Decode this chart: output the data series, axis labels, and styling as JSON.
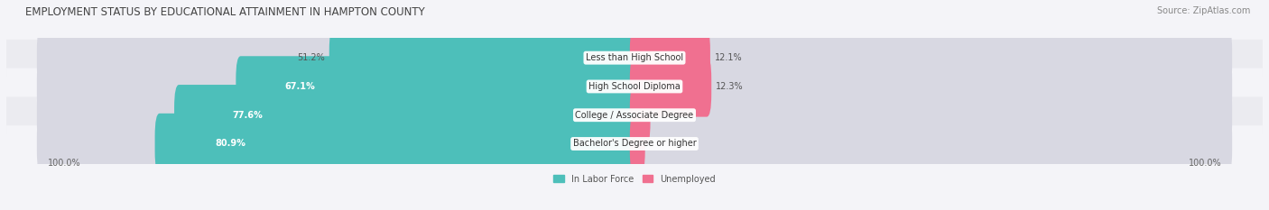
{
  "title": "EMPLOYMENT STATUS BY EDUCATIONAL ATTAINMENT IN HAMPTON COUNTY",
  "source": "Source: ZipAtlas.com",
  "categories": [
    "Less than High School",
    "High School Diploma",
    "College / Associate Degree",
    "Bachelor's Degree or higher"
  ],
  "labor_force": [
    51.2,
    67.1,
    77.6,
    80.9
  ],
  "unemployed": [
    12.1,
    12.3,
    1.9,
    1.0
  ],
  "labor_force_color": "#4dbfba",
  "unemployed_color": "#f07090",
  "row_bg_even": "#ebebf0",
  "row_bg_odd": "#f4f4f8",
  "bar_bg_color": "#d8d8e2",
  "axis_label_left": "100.0%",
  "axis_label_right": "100.0%",
  "max_val": 100.0,
  "title_fontsize": 8.5,
  "source_fontsize": 7,
  "bar_label_fontsize": 7,
  "category_fontsize": 7,
  "legend_fontsize": 7,
  "axis_tick_fontsize": 7
}
